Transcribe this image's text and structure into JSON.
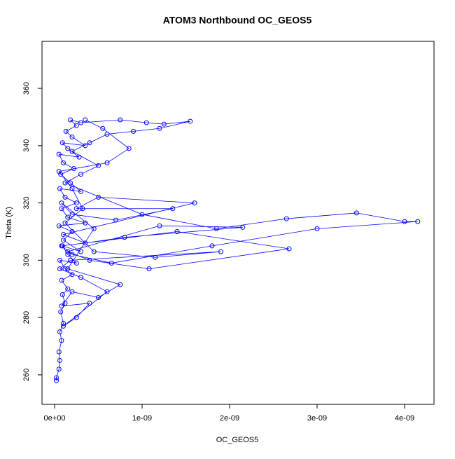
{
  "chart_data": {
    "type": "line",
    "markers": true,
    "title": "ATOM3 Northbound OC_GEOS5",
    "xlabel": "OC_GEOS5",
    "ylabel": "Theta (K)",
    "color": "#0000ff",
    "x": [
      2e-11,
      2e-11,
      5e-11,
      6e-11,
      5e-11,
      8e-11,
      6e-11,
      1e-10,
      7e-11,
      1.2e-10,
      9e-11,
      1.5e-10,
      8e-11,
      2e-10,
      1.2e-10,
      6e-11,
      2.5e-10,
      1.5e-10,
      9e-11,
      3e-10,
      1e-10,
      2e-10,
      5e-11,
      3.5e-10,
      1.5e-10,
      8e-11,
      2.5e-10,
      1.2e-10,
      6e-11,
      3e-10,
      1.8e-10,
      7e-11,
      2.2e-10,
      1e-10,
      5e-11,
      2.8e-10,
      1.5e-10,
      9e-11,
      3.5e-10,
      2e-10,
      1.3e-10,
      2.5e-10,
      1.8e-10,
      3e-10,
      7.5e-10,
      1.05e-09,
      1.25e-09,
      1.55e-09,
      1.2e-09,
      9e-10,
      6e-10,
      4e-10,
      2e-10,
      5e-10,
      3e-10,
      1.2e-10,
      1e-09,
      1.85e-09,
      2.65e-09,
      3.45e-09,
      4e-09,
      4.15e-09,
      3e-09,
      1.8e-09,
      6.5e-10,
      2e-10,
      8e-11,
      1.4e-09,
      2.68e-09,
      1.08e-09,
      4e-10,
      1.5e-10,
      1.2e-09,
      2.15e-09,
      8e-10,
      3.5e-10,
      1e-10,
      1.6e-09,
      5e-10,
      2.5e-10,
      1.35e-09,
      7e-10,
      2e-10,
      8e-11,
      4.5e-10,
      1.5e-10,
      7.5e-10,
      5e-10,
      2e-10,
      8e-11,
      4e-10,
      2.5e-10,
      1e-10,
      6e-10,
      3e-10,
      6e-11,
      1.8e-10,
      1.9e-09,
      1.15e-09,
      4.5e-10,
      1.2e-10,
      3.2e-10,
      2e-10,
      5e-11,
      6e-10,
      8.5e-10,
      5.5e-10,
      3.5e-10
    ],
    "values": [
      258,
      259,
      262,
      265,
      268,
      272,
      275,
      278,
      282,
      285,
      288,
      290,
      293,
      295,
      297,
      300,
      299,
      302,
      305,
      303,
      307,
      310,
      312,
      313,
      315,
      318,
      320,
      322,
      325,
      324,
      327,
      330,
      332,
      334,
      337,
      336,
      339,
      341,
      340,
      343,
      345,
      347,
      349,
      348,
      349,
      348,
      347.5,
      348.5,
      346,
      345,
      344,
      341,
      338,
      333,
      330,
      327,
      316,
      311,
      314.5,
      316.5,
      313.5,
      313.5,
      311,
      305,
      299,
      302,
      305,
      310,
      304,
      297,
      300,
      303,
      312,
      311.5,
      308,
      306,
      309,
      320,
      322,
      318,
      318,
      314,
      316,
      320,
      311,
      297,
      291.5,
      287,
      289,
      284,
      285,
      280,
      277,
      289,
      294,
      297,
      300,
      303,
      301,
      303,
      313,
      318,
      325,
      331,
      334,
      339,
      346,
      349
    ],
    "xlim": [
      -1.44e-10,
      4.336e-09
    ],
    "xticks": [
      {
        "value": 0,
        "label": "0e+00"
      },
      {
        "value": 1e-09,
        "label": "1e-09"
      },
      {
        "value": 2e-09,
        "label": "2e-09"
      },
      {
        "value": 3e-09,
        "label": "3e-09"
      },
      {
        "value": 4e-09,
        "label": "4e-09"
      }
    ],
    "ylim": [
      249.7,
      376.4
    ],
    "yticks": [
      260,
      280,
      300,
      320,
      340,
      360
    ]
  }
}
